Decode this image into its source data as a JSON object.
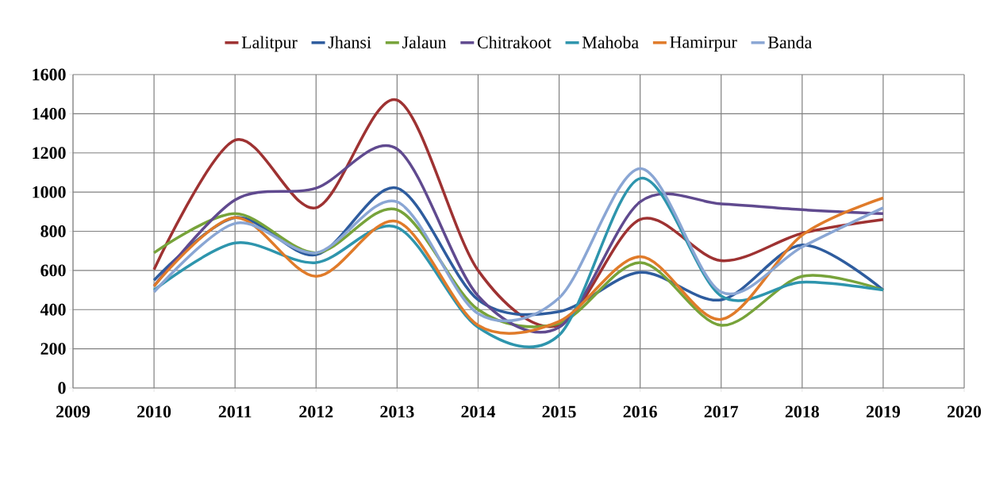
{
  "chart_data": {
    "type": "line",
    "x": [
      2010,
      2011,
      2012,
      2013,
      2014,
      2015,
      2016,
      2017,
      2018,
      2019
    ],
    "series": [
      {
        "name": "Lalitpur",
        "color": "#9e3232",
        "values": [
          605,
          1265,
          920,
          1470,
          600,
          320,
          860,
          650,
          790,
          860
        ]
      },
      {
        "name": "Jhansi",
        "color": "#2e5c9e",
        "values": [
          550,
          870,
          680,
          1020,
          450,
          390,
          590,
          450,
          730,
          500
        ]
      },
      {
        "name": "Jalaun",
        "color": "#77a33a",
        "values": [
          690,
          890,
          690,
          910,
          400,
          330,
          640,
          320,
          570,
          500
        ]
      },
      {
        "name": "Chitrakoot",
        "color": "#604a8f",
        "values": [
          520,
          960,
          1020,
          1220,
          470,
          310,
          950,
          940,
          910,
          890
        ]
      },
      {
        "name": "Mahoba",
        "color": "#2e95ad",
        "values": [
          500,
          740,
          640,
          820,
          310,
          270,
          1070,
          470,
          540,
          500
        ]
      },
      {
        "name": "Hamirpur",
        "color": "#e07b2a",
        "values": [
          520,
          870,
          570,
          850,
          320,
          340,
          670,
          350,
          780,
          970
        ]
      },
      {
        "name": "Banda",
        "color": "#8aa6d4",
        "values": [
          490,
          840,
          690,
          950,
          380,
          460,
          1120,
          490,
          720,
          920
        ]
      }
    ],
    "xlim": [
      2009,
      2020
    ],
    "xticks": [
      2009,
      2010,
      2011,
      2012,
      2013,
      2014,
      2015,
      2016,
      2017,
      2018,
      2019,
      2020
    ],
    "ylim": [
      0,
      1600
    ],
    "yticks": [
      0,
      200,
      400,
      600,
      800,
      1000,
      1200,
      1400,
      1600
    ],
    "grid": true,
    "legend": "top",
    "marker": "none",
    "line_style": "solid"
  }
}
